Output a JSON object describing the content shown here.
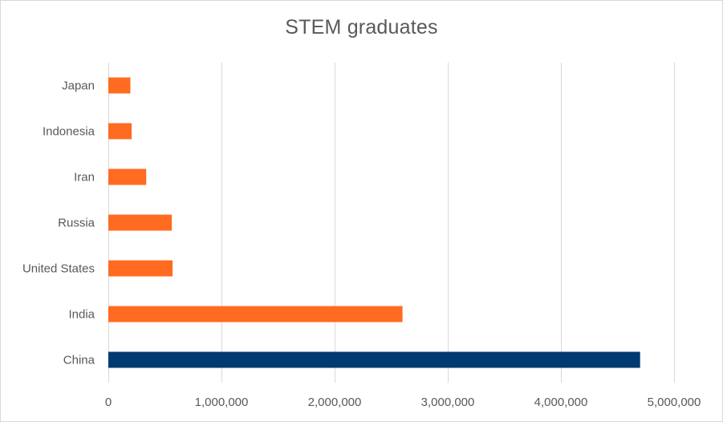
{
  "chart_data": {
    "type": "bar",
    "orientation": "horizontal",
    "title": "STEM graduates",
    "xlabel": "",
    "ylabel": "",
    "categories": [
      "China",
      "India",
      "United States",
      "Russia",
      "Iran",
      "Indonesia",
      "Japan"
    ],
    "values": [
      4700000,
      2600000,
      568000,
      561000,
      335000,
      206000,
      195000
    ],
    "bar_colors": [
      "#003A70",
      "#FF6B21",
      "#FF6B21",
      "#FF6B21",
      "#FF6B21",
      "#FF6B21",
      "#FF6B21"
    ],
    "xlim": [
      0,
      5000000
    ],
    "x_ticks": [
      0,
      1000000,
      2000000,
      3000000,
      4000000,
      5000000
    ],
    "x_tick_labels": [
      "0",
      "1,000,000",
      "2,000,000",
      "3,000,000",
      "4,000,000",
      "5,000,000"
    ],
    "grid": "vertical",
    "gridline_color": "#d9d9d9",
    "legend": "none"
  }
}
